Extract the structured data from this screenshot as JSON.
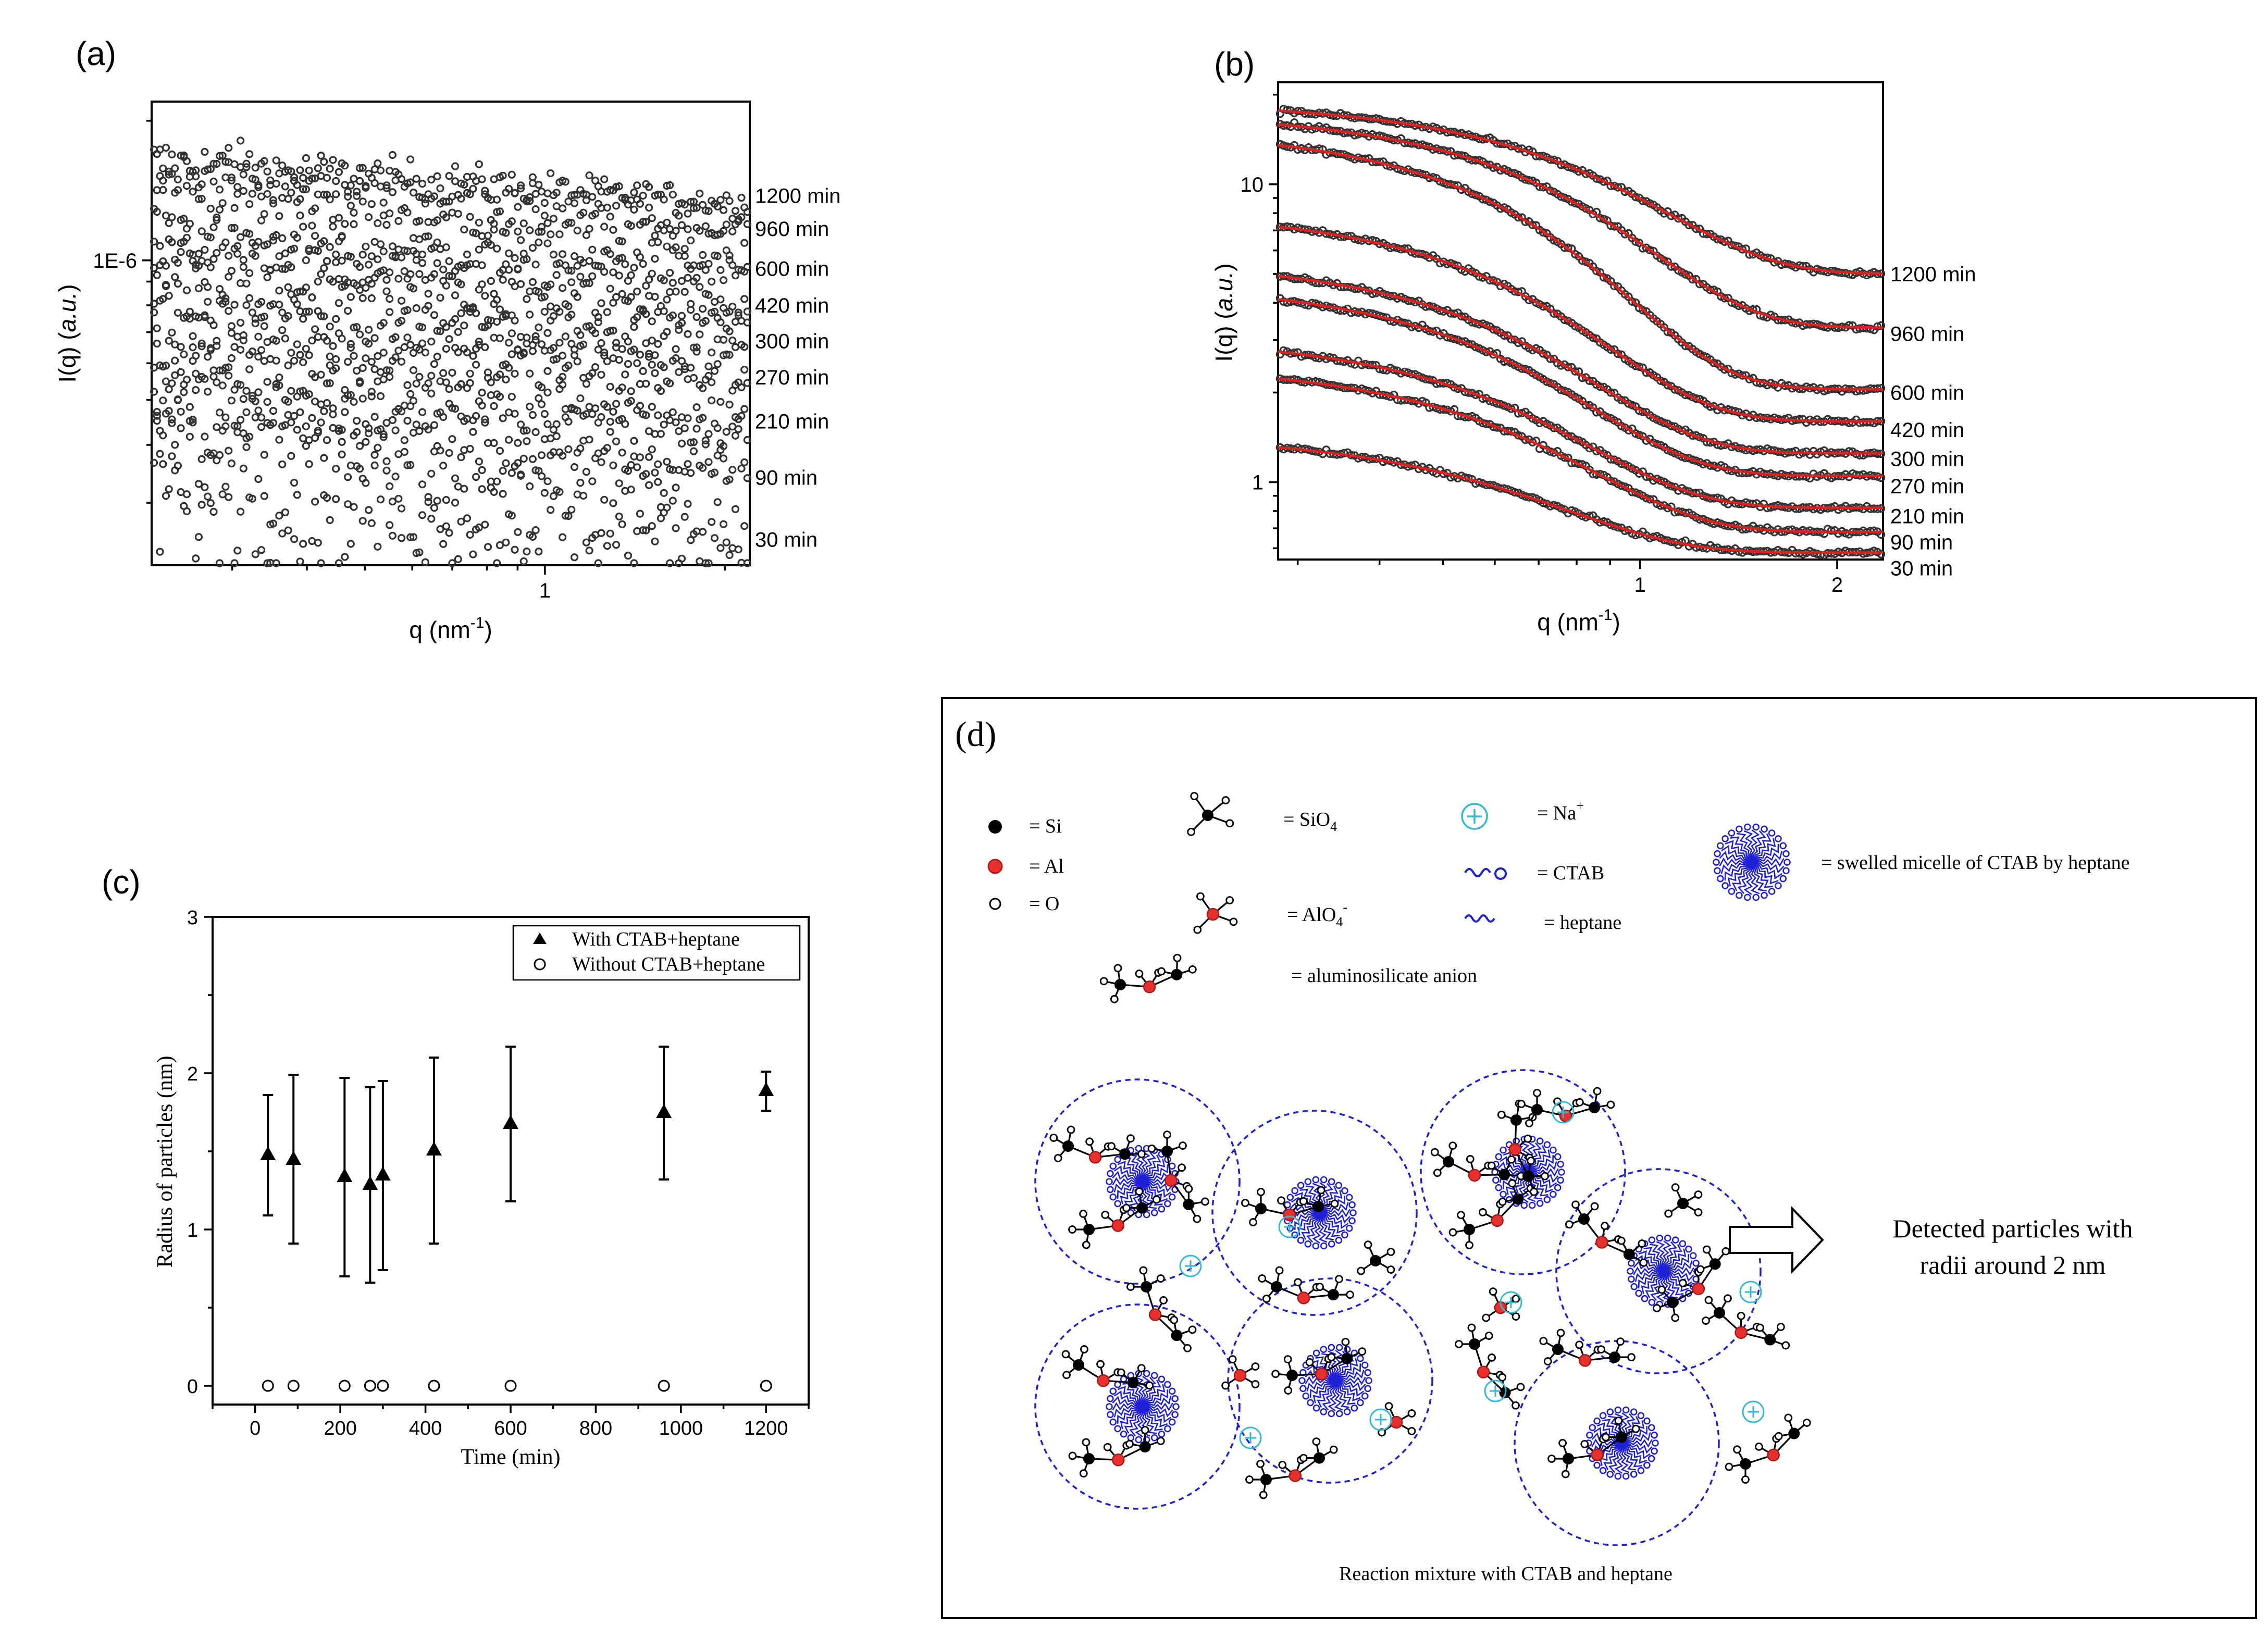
{
  "panels": {
    "a": {
      "label": "(a)"
    },
    "b": {
      "label": "(b)"
    },
    "c": {
      "label": "(c)"
    },
    "d": {
      "label": "(d)"
    }
  },
  "chart_data": [
    {
      "id": "a",
      "type": "scatter",
      "xscale": "log",
      "yscale": "log",
      "xlabel": "q (nm",
      "xlabel_sup": "-1",
      "xlabel_end": ")",
      "ylabel": "I(q) (",
      "ylabel_italic": "a.u.",
      "ylabel_end": ")",
      "xlim": [
        0.22,
        2.2
      ],
      "ylim": [
        2.2e-07,
        2.2e-06
      ],
      "xticks": [
        {
          "v": 1,
          "label": "1"
        }
      ],
      "yticks": [
        {
          "v": 1e-06,
          "label": "1E-6"
        }
      ],
      "series": [
        {
          "name": "1200 min",
          "label_y": 1.38e-06,
          "start": 1.62e-06,
          "end": 1.32e-06,
          "noise": 0.05
        },
        {
          "name": "960 min",
          "label_y": 1.17e-06,
          "start": 1.45e-06,
          "end": 1.15e-06,
          "noise": 0.07
        },
        {
          "name": "600 min",
          "label_y": 9.6e-07,
          "start": 1.12e-06,
          "end": 9.5e-07,
          "noise": 0.07
        },
        {
          "name": "420 min",
          "label_y": 8e-07,
          "start": 9.6e-07,
          "end": 8e-07,
          "noise": 0.08
        },
        {
          "name": "300 min",
          "label_y": 6.7e-07,
          "start": 7.6e-07,
          "end": 6.8e-07,
          "noise": 0.08
        },
        {
          "name": "270 min",
          "label_y": 5.6e-07,
          "start": 6.6e-07,
          "end": 5.6e-07,
          "noise": 0.09
        },
        {
          "name": "210 min",
          "label_y": 4.5e-07,
          "start": 5.2e-07,
          "end": 4.5e-07,
          "noise": 0.09
        },
        {
          "name": "90 min",
          "label_y": 3.4e-07,
          "start": 4.2e-07,
          "end": 3.6e-07,
          "noise": 0.13
        },
        {
          "name": "30 min",
          "label_y": 2.5e-07,
          "start": 3.3e-07,
          "end": 2.55e-07,
          "noise": 0.15
        }
      ]
    },
    {
      "id": "b",
      "type": "scatter",
      "xscale": "log",
      "yscale": "log",
      "xlabel": "q (nm",
      "xlabel_sup": "-1",
      "xlabel_end": ")",
      "ylabel": "I(q) (",
      "ylabel_italic": "a.u.",
      "ylabel_end": ")",
      "xlim": [
        0.28,
        2.35
      ],
      "ylim": [
        0.55,
        22
      ],
      "xticks": [
        {
          "v": 1,
          "label": "1"
        },
        {
          "v": 2,
          "label": "2"
        }
      ],
      "yticks": [
        {
          "v": 1,
          "label": "1"
        },
        {
          "v": 10,
          "label": "10"
        }
      ],
      "fit_color": "#e0201e",
      "series": [
        {
          "name": "1200 min",
          "I0": 19.0,
          "R": 1.95,
          "Iend": 5.0,
          "label_y": 5.0
        },
        {
          "name": "960 min",
          "I0": 17.5,
          "R": 2.15,
          "Iend": 3.3,
          "label_y": 3.15
        },
        {
          "name": "600 min",
          "I0": 15.5,
          "R": 2.45,
          "Iend": 2.05,
          "label_y": 2.0
        },
        {
          "name": "420 min",
          "I0": 8.2,
          "R": 2.5,
          "Iend": 1.6,
          "label_y": 1.5
        },
        {
          "name": "300 min",
          "I0": 5.6,
          "R": 2.55,
          "Iend": 1.25,
          "label_y": 1.2
        },
        {
          "name": "270 min",
          "I0": 4.7,
          "R": 2.6,
          "Iend": 1.05,
          "label_y": 0.97
        },
        {
          "name": "210 min",
          "I0": 3.1,
          "R": 2.55,
          "Iend": 0.82,
          "label_y": 0.77
        },
        {
          "name": "90 min",
          "I0": 2.5,
          "R": 2.5,
          "Iend": 0.68,
          "label_y": 0.63
        },
        {
          "name": "30 min",
          "I0": 1.45,
          "R": 2.6,
          "Iend": 0.58,
          "label_y": 0.515
        }
      ]
    },
    {
      "id": "c",
      "type": "scatter",
      "xlabel": "Time (min)",
      "ylabel": "Radius of particles (nm)",
      "xlim": [
        -100,
        1300
      ],
      "ylim": [
        -0.12,
        3.0
      ],
      "xticks": [
        0,
        200,
        400,
        600,
        800,
        1000,
        1200
      ],
      "yticks": [
        0,
        1,
        2,
        3
      ],
      "legend_position": "top-right",
      "series": [
        {
          "name": "With CTAB+heptane",
          "marker": "filled-triangle",
          "x": [
            30,
            90,
            210,
            270,
            300,
            420,
            600,
            960,
            1200
          ],
          "y": [
            1.48,
            1.45,
            1.34,
            1.29,
            1.35,
            1.51,
            1.68,
            1.75,
            1.89
          ],
          "err_low": [
            1.09,
            0.91,
            0.7,
            0.66,
            0.74,
            0.91,
            1.18,
            1.32,
            1.76
          ],
          "err_high": [
            1.86,
            1.99,
            1.97,
            1.91,
            1.95,
            2.1,
            2.17,
            2.17,
            2.01
          ]
        },
        {
          "name": "Without CTAB+heptane",
          "marker": "open-circle",
          "x": [
            30,
            90,
            210,
            270,
            300,
            420,
            600,
            960,
            1200
          ],
          "y": [
            0,
            0,
            0,
            0,
            0,
            0,
            0,
            0,
            0
          ]
        }
      ]
    }
  ],
  "diagram_d": {
    "legend": {
      "si": "= Si",
      "al": "= Al",
      "o": "= O",
      "sio4": "= SiO",
      "sio4_sub": "4",
      "alo4": "= AlO",
      "alo4_sub": "4",
      "alo4_sup": "-",
      "na": "= Na",
      "na_sup": "+",
      "ctab": "= CTAB",
      "heptane": "= heptane",
      "anion": "= aluminosilicate anion",
      "micelle": "= swelled micelle of CTAB by heptane"
    },
    "arrow_text_1": "Detected particles with",
    "arrow_text_2": "radii around 2 nm",
    "caption": "Reaction mixture with CTAB and heptane",
    "colors": {
      "micelle": "#1f1fd6",
      "al": "#e8302c",
      "na": "#35b8d6",
      "circle": "#1f1fd6"
    }
  }
}
